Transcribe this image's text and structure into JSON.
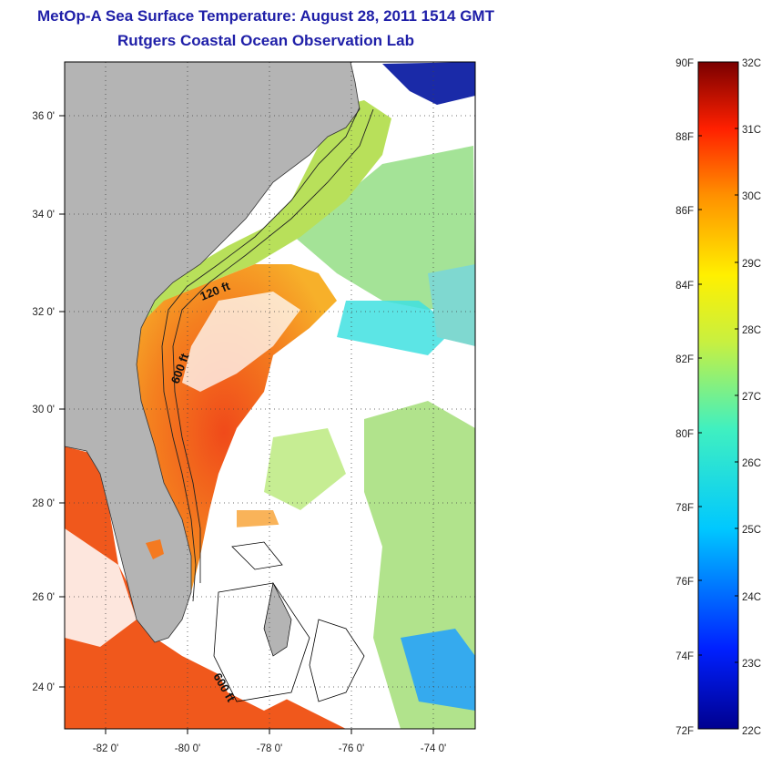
{
  "title": "MetOp-A Sea Surface Temperature:  August 28, 2011 1514 GMT",
  "subtitle": "Rutgers Coastal Ocean Observation Lab",
  "map": {
    "lon_range": [
      -83,
      -73
    ],
    "lat_range": [
      23,
      37
    ],
    "lon_ticks": [
      "-82 0'",
      "-80 0'",
      "-78 0'",
      "-76 0'",
      "-74 0'"
    ],
    "lat_ticks": [
      "36 0'",
      "34 0'",
      "32 0'",
      "30 0'",
      "28 0'",
      "26 0'",
      "24 0'"
    ],
    "contour_labels": [
      "120 ft",
      "600 ft",
      "600 ft"
    ],
    "colors": {
      "land": "#b4b4b4",
      "cloud": "#ffffff",
      "gulf_stream": "#f0601e",
      "shelf": "#f5a623",
      "offshore": "#8fd88a",
      "cold": "#1a2aa8"
    }
  },
  "colorbar": {
    "fahrenheit": [
      "90F",
      "88F",
      "86F",
      "84F",
      "82F",
      "80F",
      "78F",
      "76F",
      "74F",
      "72F"
    ],
    "celsius": [
      "32C",
      "31C",
      "30C",
      "29C",
      "28C",
      "27C",
      "26C",
      "25C",
      "24C",
      "23C",
      "22C"
    ]
  }
}
